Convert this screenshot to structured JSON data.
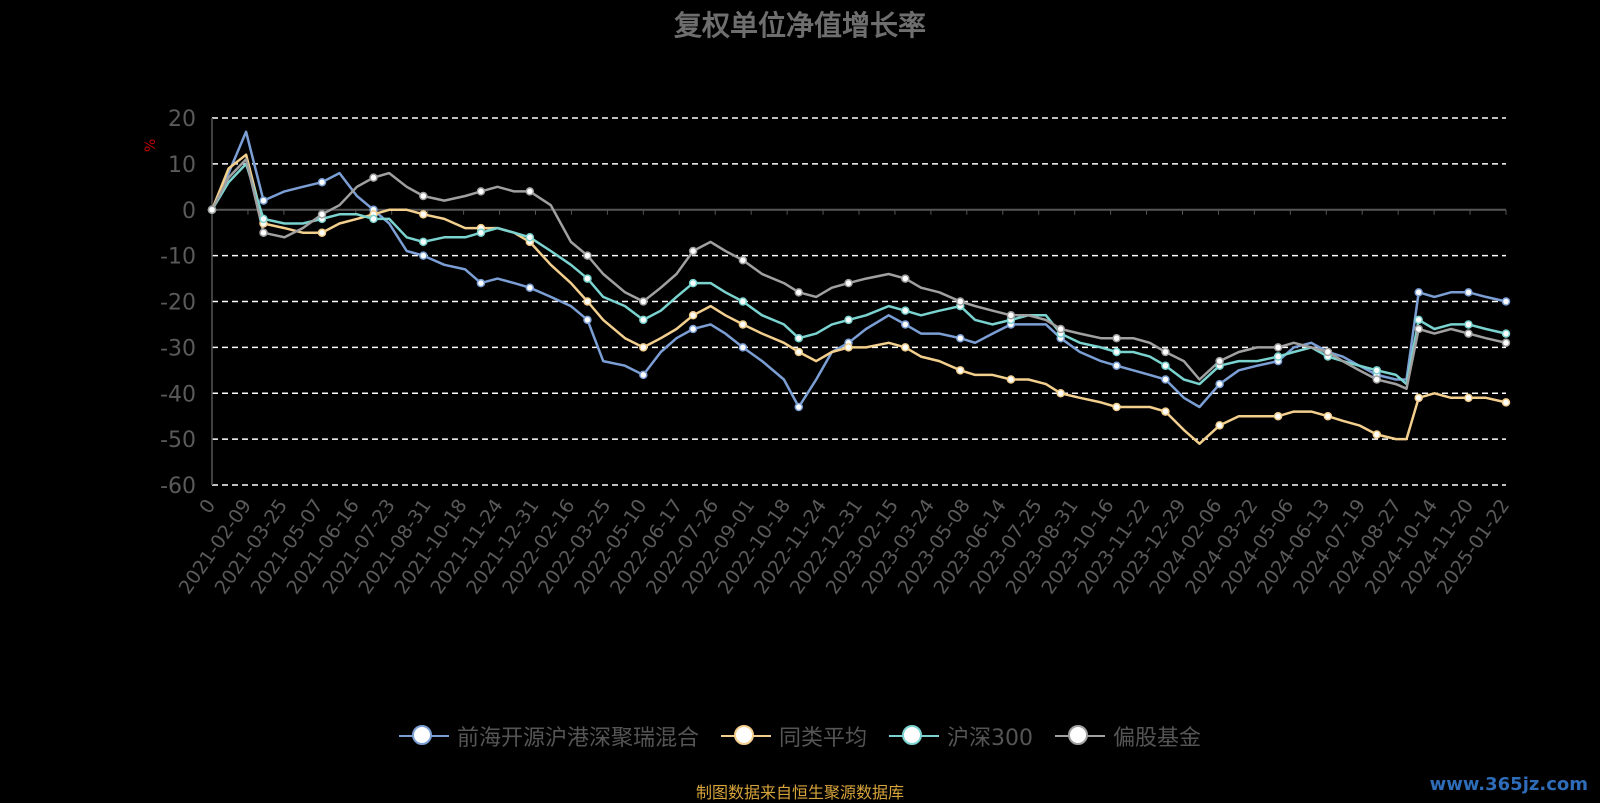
{
  "title": "复权单位净值增长率",
  "ylabel": "%",
  "source_note": "制图数据来自恒生聚源数据库",
  "watermark": "www.365jz.com",
  "chart_data": {
    "type": "line",
    "title": "复权单位净值增长率",
    "ylabel": "%",
    "ylim": [
      -60,
      20
    ],
    "yticks": [
      20,
      10,
      0,
      -10,
      -20,
      -30,
      -40,
      -50,
      -60
    ],
    "grid": true,
    "legend_position": "bottom",
    "x_tick_labels": [
      "0",
      "2021-02-09",
      "2021-03-25",
      "2021-05-07",
      "2021-06-16",
      "2021-07-23",
      "2021-08-31",
      "2021-10-18",
      "2021-11-24",
      "2021-12-31",
      "2022-02-16",
      "2022-03-25",
      "2022-05-10",
      "2022-06-17",
      "2022-07-26",
      "2022-09-01",
      "2022-10-18",
      "2022-11-24",
      "2022-12-31",
      "2023-02-15",
      "2023-03-24",
      "2023-05-08",
      "2023-06-14",
      "2023-07-25",
      "2023-08-31",
      "2023-10-16",
      "2023-11-22",
      "2023-12-29",
      "2024-02-06",
      "2024-03-22",
      "2024-05-06",
      "2024-06-13",
      "2024-07-19",
      "2024-08-27",
      "2024-10-14",
      "2024-11-20",
      "2025-01-22"
    ],
    "x": [
      "2021-01-01",
      "2021-01-20",
      "2021-02-09",
      "2021-03-01",
      "2021-03-25",
      "2021-04-15",
      "2021-05-07",
      "2021-05-27",
      "2021-06-16",
      "2021-07-05",
      "2021-07-23",
      "2021-08-12",
      "2021-08-31",
      "2021-09-24",
      "2021-10-18",
      "2021-11-05",
      "2021-11-24",
      "2021-12-13",
      "2021-12-31",
      "2022-01-24",
      "2022-02-16",
      "2022-03-07",
      "2022-03-25",
      "2022-04-19",
      "2022-05-10",
      "2022-05-30",
      "2022-06-17",
      "2022-07-06",
      "2022-07-26",
      "2022-08-12",
      "2022-09-01",
      "2022-09-23",
      "2022-10-18",
      "2022-11-04",
      "2022-11-24",
      "2022-12-12",
      "2022-12-31",
      "2023-01-20",
      "2023-02-15",
      "2023-03-06",
      "2023-03-24",
      "2023-04-14",
      "2023-05-08",
      "2023-05-25",
      "2023-06-14",
      "2023-07-05",
      "2023-07-25",
      "2023-08-14",
      "2023-08-31",
      "2023-09-22",
      "2023-10-16",
      "2023-11-03",
      "2023-11-22",
      "2023-12-11",
      "2023-12-29",
      "2024-01-19",
      "2024-02-06",
      "2024-02-29",
      "2024-03-22",
      "2024-04-12",
      "2024-05-06",
      "2024-05-24",
      "2024-06-13",
      "2024-07-02",
      "2024-07-19",
      "2024-08-07",
      "2024-08-27",
      "2024-09-18",
      "2024-09-30",
      "2024-10-14",
      "2024-11-01",
      "2024-11-20",
      "2024-12-10",
      "2024-12-30",
      "2025-01-22"
    ],
    "series": [
      {
        "name": "前海开源沪港深聚瑞混合",
        "color": "#7b9fd4",
        "values": [
          0,
          8,
          17,
          2,
          4,
          5,
          6,
          8,
          3,
          0,
          -3,
          -9,
          -10,
          -12,
          -13,
          -16,
          -15,
          -16,
          -17,
          -19,
          -21,
          -24,
          -33,
          -34,
          -36,
          -31,
          -28,
          -26,
          -25,
          -27,
          -30,
          -33,
          -37,
          -43,
          -37,
          -31,
          -29,
          -26,
          -23,
          -25,
          -27,
          -27,
          -28,
          -29,
          -27,
          -25,
          -25,
          -25,
          -28,
          -31,
          -33,
          -34,
          -35,
          -36,
          -37,
          -41,
          -43,
          -38,
          -35,
          -34,
          -33,
          -30,
          -29,
          -31,
          -32,
          -34,
          -36,
          -37,
          -37,
          -18,
          -19,
          -18,
          -18,
          -19,
          -20
        ]
      },
      {
        "name": "同类平均",
        "color": "#f3cf8e",
        "values": [
          0,
          9,
          12,
          -3,
          -4,
          -5,
          -5,
          -3,
          -2,
          -1,
          0,
          0,
          -1,
          -2,
          -4,
          -4,
          -4,
          -5,
          -7,
          -12,
          -16,
          -20,
          -24,
          -28,
          -30,
          -28,
          -26,
          -23,
          -21,
          -23,
          -25,
          -27,
          -29,
          -31,
          -33,
          -31,
          -30,
          -30,
          -29,
          -30,
          -32,
          -33,
          -35,
          -36,
          -36,
          -37,
          -37,
          -38,
          -40,
          -41,
          -42,
          -43,
          -43,
          -43,
          -44,
          -48,
          -51,
          -47,
          -45,
          -45,
          -45,
          -44,
          -44,
          -45,
          -46,
          -47,
          -49,
          -50,
          -50,
          -41,
          -40,
          -41,
          -41,
          -41,
          -42
        ]
      },
      {
        "name": "沪深300",
        "color": "#7ad3cf",
        "values": [
          0,
          6,
          10,
          -2,
          -3,
          -3,
          -2,
          -1,
          -1,
          -2,
          -2,
          -6,
          -7,
          -6,
          -6,
          -5,
          -4,
          -5,
          -6,
          -9,
          -12,
          -15,
          -19,
          -21,
          -24,
          -22,
          -19,
          -16,
          -16,
          -18,
          -20,
          -23,
          -25,
          -28,
          -27,
          -25,
          -24,
          -23,
          -21,
          -22,
          -23,
          -22,
          -21,
          -24,
          -25,
          -24,
          -23,
          -23,
          -27,
          -29,
          -30,
          -31,
          -31,
          -32,
          -34,
          -37,
          -38,
          -34,
          -33,
          -33,
          -32,
          -31,
          -30,
          -32,
          -33,
          -34,
          -35,
          -36,
          -38,
          -24,
          -26,
          -25,
          -25,
          -26,
          -27
        ]
      },
      {
        "name": "偏股基金",
        "color": "#a0a0a0",
        "values": [
          0,
          7,
          11,
          -5,
          -6,
          -4,
          -1,
          1,
          5,
          7,
          8,
          5,
          3,
          2,
          3,
          4,
          5,
          4,
          4,
          1,
          -7,
          -10,
          -14,
          -18,
          -20,
          -17,
          -14,
          -9,
          -7,
          -9,
          -11,
          -14,
          -16,
          -18,
          -19,
          -17,
          -16,
          -15,
          -14,
          -15,
          -17,
          -18,
          -20,
          -21,
          -22,
          -23,
          -23,
          -24,
          -26,
          -27,
          -28,
          -28,
          -28,
          -29,
          -31,
          -33,
          -37,
          -33,
          -31,
          -30,
          -30,
          -29,
          -30,
          -31,
          -33,
          -35,
          -37,
          -38,
          -39,
          -26,
          -27,
          -26,
          -27,
          -28,
          -29
        ]
      }
    ]
  }
}
